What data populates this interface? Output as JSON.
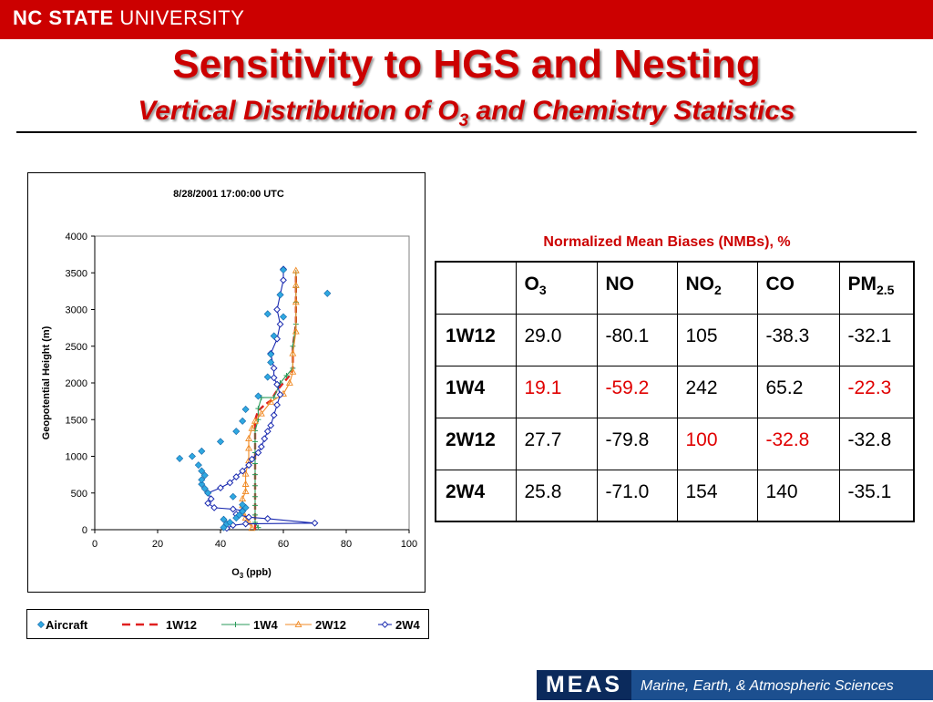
{
  "header": {
    "university_bold": "NC STATE",
    "university_rest": " UNIVERSITY",
    "title": "Sensitivity to HGS and Nesting",
    "subtitle_pre": "Vertical Distribution of O",
    "subtitle_sub": "3",
    "subtitle_post": " and Chemistry Statistics"
  },
  "chart_data": {
    "type": "scatter",
    "title": "8/28/2001 17:00:00 UTC",
    "xlabel": "O",
    "xlabel_sub": "3",
    "xlabel_unit": " (ppb)",
    "ylabel": "Geopotential Height (m)",
    "xlim": [
      0,
      100
    ],
    "ylim": [
      0,
      4000
    ],
    "xticks": [
      "0",
      "20",
      "40",
      "60",
      "80",
      "100"
    ],
    "yticks": [
      "0",
      "500",
      "1000",
      "1500",
      "2000",
      "2500",
      "3000",
      "3500",
      "4000"
    ],
    "grid": false,
    "series": [
      {
        "name": "Aircraft",
        "color": "#2fa8e0",
        "line": false,
        "marker": "diamond",
        "points": [
          [
            41,
            30
          ],
          [
            42,
            80
          ],
          [
            41,
            140
          ],
          [
            43,
            100
          ],
          [
            45,
            160
          ],
          [
            46,
            200
          ],
          [
            47,
            250
          ],
          [
            48,
            300
          ],
          [
            47,
            340
          ],
          [
            44,
            450
          ],
          [
            36,
            500
          ],
          [
            35,
            560
          ],
          [
            34,
            620
          ],
          [
            34,
            680
          ],
          [
            35,
            740
          ],
          [
            34,
            800
          ],
          [
            33,
            880
          ],
          [
            27,
            970
          ],
          [
            31,
            1000
          ],
          [
            34,
            1070
          ],
          [
            40,
            1200
          ],
          [
            45,
            1340
          ],
          [
            47,
            1480
          ],
          [
            48,
            1640
          ],
          [
            52,
            1820
          ],
          [
            55,
            2080
          ],
          [
            56,
            2280
          ],
          [
            56,
            2390
          ],
          [
            57,
            2640
          ],
          [
            55,
            2940
          ],
          [
            60,
            2900
          ],
          [
            59,
            3200
          ],
          [
            60,
            3540
          ],
          [
            74,
            3220
          ]
        ]
      },
      {
        "name": "1W12",
        "color": "#e02020",
        "line": true,
        "dashed": true,
        "marker": "none",
        "points": [
          [
            51,
            0
          ],
          [
            51,
            1000
          ],
          [
            51,
            1380
          ],
          [
            51,
            1500
          ],
          [
            52,
            1620
          ],
          [
            54,
            1700
          ],
          [
            56,
            1760
          ],
          [
            58,
            1900
          ],
          [
            60,
            2000
          ],
          [
            62,
            2100
          ],
          [
            63,
            2200
          ],
          [
            63,
            2500
          ],
          [
            64,
            2800
          ],
          [
            64,
            3300
          ],
          [
            64,
            3500
          ]
        ]
      },
      {
        "name": "1W4",
        "color": "#2a9a5a",
        "line": true,
        "marker": "plus",
        "points": [
          [
            52,
            30
          ],
          [
            51,
            100
          ],
          [
            51,
            200
          ],
          [
            51,
            330
          ],
          [
            51,
            450
          ],
          [
            51,
            600
          ],
          [
            51,
            750
          ],
          [
            51,
            900
          ],
          [
            51,
            1050
          ],
          [
            51,
            1200
          ],
          [
            51,
            1350
          ],
          [
            52,
            1500
          ],
          [
            52,
            1650
          ],
          [
            53,
            1800
          ],
          [
            57,
            1800
          ],
          [
            59,
            2000
          ],
          [
            61,
            2100
          ],
          [
            63,
            2200
          ],
          [
            63,
            2500
          ],
          [
            64,
            2800
          ],
          [
            64,
            3100
          ],
          [
            64,
            3300
          ],
          [
            64,
            3500
          ]
        ]
      },
      {
        "name": "2W12",
        "color": "#f08a24",
        "line": true,
        "marker": "triangle",
        "points": [
          [
            50,
            20
          ],
          [
            49,
            100
          ],
          [
            48,
            160
          ],
          [
            47,
            240
          ],
          [
            47,
            330
          ],
          [
            47,
            420
          ],
          [
            48,
            520
          ],
          [
            48,
            620
          ],
          [
            48,
            760
          ],
          [
            49,
            940
          ],
          [
            49,
            1110
          ],
          [
            49,
            1240
          ],
          [
            50,
            1380
          ],
          [
            51,
            1480
          ],
          [
            53,
            1580
          ],
          [
            56,
            1740
          ],
          [
            60,
            1850
          ],
          [
            62,
            2000
          ],
          [
            63,
            2150
          ],
          [
            63,
            2400
          ],
          [
            64,
            2700
          ],
          [
            64,
            3100
          ],
          [
            64,
            3330
          ],
          [
            64,
            3530
          ]
        ]
      },
      {
        "name": "2W4",
        "color": "#1a2ab0",
        "line": true,
        "marker": "diamond-open",
        "points": [
          [
            42,
            20
          ],
          [
            44,
            60
          ],
          [
            48,
            80
          ],
          [
            70,
            90
          ],
          [
            55,
            150
          ],
          [
            49,
            170
          ],
          [
            45,
            210
          ],
          [
            47,
            260
          ],
          [
            44,
            280
          ],
          [
            38,
            300
          ],
          [
            36,
            360
          ],
          [
            37,
            420
          ],
          [
            36,
            500
          ],
          [
            40,
            570
          ],
          [
            43,
            640
          ],
          [
            45,
            720
          ],
          [
            47,
            800
          ],
          [
            49,
            880
          ],
          [
            50,
            960
          ],
          [
            52,
            1050
          ],
          [
            53,
            1130
          ],
          [
            54,
            1240
          ],
          [
            55,
            1340
          ],
          [
            56,
            1420
          ],
          [
            57,
            1560
          ],
          [
            58,
            1700
          ],
          [
            59,
            1840
          ],
          [
            58,
            1980
          ],
          [
            57,
            2070
          ],
          [
            57,
            2200
          ],
          [
            56,
            2400
          ],
          [
            58,
            2600
          ],
          [
            59,
            2800
          ],
          [
            58,
            3000
          ],
          [
            59,
            3200
          ],
          [
            60,
            3400
          ],
          [
            60,
            3550
          ]
        ]
      }
    ]
  },
  "nmb": {
    "title": "Normalized Mean Biases (NMBs), %",
    "columns": [
      {
        "base": "O",
        "sub": "3"
      },
      {
        "base": "NO",
        "sub": ""
      },
      {
        "base": "NO",
        "sub": "2"
      },
      {
        "base": "CO",
        "sub": ""
      },
      {
        "base": "PM",
        "sub": "2.5"
      }
    ],
    "rows": [
      {
        "label": "1W12",
        "cells": [
          {
            "v": "29.0",
            "hl": false
          },
          {
            "v": "-80.1",
            "hl": false
          },
          {
            "v": "105",
            "hl": false
          },
          {
            "v": "-38.3",
            "hl": false
          },
          {
            "v": "-32.1",
            "hl": false
          }
        ]
      },
      {
        "label": "1W4",
        "cells": [
          {
            "v": "19.1",
            "hl": true
          },
          {
            "v": "-59.2",
            "hl": true
          },
          {
            "v": "242",
            "hl": false
          },
          {
            "v": "65.2",
            "hl": false
          },
          {
            "v": "-22.3",
            "hl": true
          }
        ]
      },
      {
        "label": "2W12",
        "cells": [
          {
            "v": "27.7",
            "hl": false
          },
          {
            "v": "-79.8",
            "hl": false
          },
          {
            "v": "100",
            "hl": true
          },
          {
            "v": "-32.8",
            "hl": true
          },
          {
            "v": "-32.8",
            "hl": false
          }
        ]
      },
      {
        "label": "2W4",
        "cells": [
          {
            "v": "25.8",
            "hl": false
          },
          {
            "v": "-71.0",
            "hl": false
          },
          {
            "v": "154",
            "hl": false
          },
          {
            "v": "140",
            "hl": false
          },
          {
            "v": "-35.1",
            "hl": false
          }
        ]
      }
    ],
    "highlight_color": "#e00000"
  },
  "footer": {
    "meas_label": "MEAS",
    "meas_text": "Marine, Earth, & Atmospheric Sciences"
  }
}
